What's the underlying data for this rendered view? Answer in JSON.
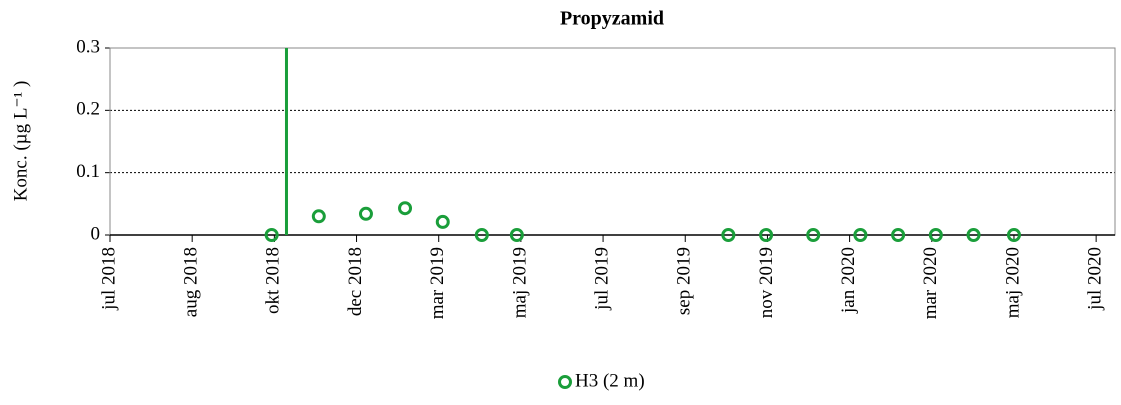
{
  "chart_data": {
    "type": "scatter",
    "title": "Propyzamid",
    "y_label": "Konc. (µg L⁻¹ )",
    "series": [
      {
        "name": "H3 (2 m)",
        "color": "#1a9e3a",
        "x": [
          "2018-10-29",
          "2018-12-03",
          "2019-01-07",
          "2019-02-05",
          "2019-03-05",
          "2019-04-03",
          "2019-04-29",
          "2019-10-03",
          "2019-10-31",
          "2019-12-05",
          "2020-01-09",
          "2020-02-06",
          "2020-03-05",
          "2020-04-02",
          "2020-05-02"
        ],
        "values": [
          0,
          0.03,
          0.034,
          0.043,
          0.021,
          0,
          0,
          0,
          0,
          0,
          0,
          0,
          0,
          0,
          0
        ]
      }
    ],
    "vline_x": "2018-11-09",
    "xlim": [
      "2018-07-01",
      "2020-07-16"
    ],
    "xticks": [
      {
        "value": "2018-07-01",
        "label": "jul 2018"
      },
      {
        "value": "2018-08-31",
        "label": "aug 2018"
      },
      {
        "value": "2018-10-31",
        "label": "okt 2018"
      },
      {
        "value": "2018-12-31",
        "label": "dec 2018"
      },
      {
        "value": "2019-03-02",
        "label": "mar 2019"
      },
      {
        "value": "2019-05-02",
        "label": "maj 2019"
      },
      {
        "value": "2019-07-02",
        "label": "jul 2019"
      },
      {
        "value": "2019-09-01",
        "label": "sep 2019"
      },
      {
        "value": "2019-11-01",
        "label": "nov 2019"
      },
      {
        "value": "2020-01-01",
        "label": "jan 2020"
      },
      {
        "value": "2020-03-02",
        "label": "mar 2020"
      },
      {
        "value": "2020-05-02",
        "label": "maj 2020"
      },
      {
        "value": "2020-07-02",
        "label": "jul 2020"
      }
    ],
    "ylim": [
      0,
      0.3
    ],
    "yticks": [
      0,
      0.1,
      0.2,
      0.3
    ],
    "grid": true,
    "legend": "bottom"
  }
}
